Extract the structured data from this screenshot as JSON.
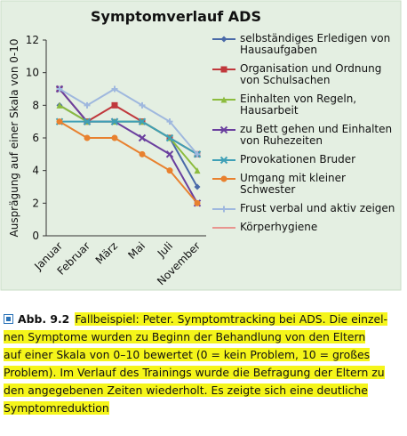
{
  "chart_data": {
    "type": "line",
    "title": "Symptomverlauf ADS",
    "y_label": "Ausprägung auf einer Skala von 0-10",
    "categories": [
      "Januar",
      "Februar",
      "März",
      "Mai",
      "Juli",
      "November"
    ],
    "ylim": [
      0,
      12
    ],
    "yticks": [
      0,
      2,
      4,
      6,
      8,
      10,
      12
    ],
    "series": [
      {
        "name": "selbständiges Erledigen von Hausaufgaben",
        "color": "#4a6aa8",
        "marker": "diamond",
        "values": [
          8,
          7,
          7,
          7,
          6,
          3
        ]
      },
      {
        "name": "Organisation und Ordnung von Schulsachen",
        "color": "#c0383c",
        "marker": "square",
        "values": [
          9,
          7,
          8,
          7,
          6,
          5
        ]
      },
      {
        "name": "Einhalten von Regeln, Hausarbeit",
        "color": "#8cbc3e",
        "marker": "triangle",
        "values": [
          8,
          7,
          7,
          7,
          6,
          4
        ]
      },
      {
        "name": "zu Bett gehen und Einhalten von Ruhezeiten",
        "color": "#6a3f9e",
        "marker": "cross",
        "values": [
          9,
          7,
          7,
          6,
          5,
          2
        ]
      },
      {
        "name": "Provokationen Bruder",
        "color": "#3fa0b6",
        "marker": "cross",
        "values": [
          7,
          7,
          7,
          7,
          6,
          5
        ]
      },
      {
        "name": "Umgang mit kleiner Schwester",
        "color": "#e8812f",
        "marker": "circle",
        "values": [
          7,
          6,
          6,
          5,
          4,
          2
        ]
      },
      {
        "name": "Frust verbal und aktiv zeigen",
        "color": "#9fb8de",
        "marker": "plus",
        "values": [
          9,
          8,
          9,
          8,
          7,
          5
        ]
      },
      {
        "name": "Körperhygiene",
        "color": "#e8958f",
        "marker": "none",
        "values": [
          null,
          null,
          null,
          null,
          null,
          null
        ]
      }
    ]
  },
  "caption": {
    "label": "Abb. 9.2",
    "lines": [
      "Fallbeispiel: Peter. Symptomtracking bei ADS. Die einzel-",
      "nen Symptome wurden zu Beginn der Behandlung von den Eltern",
      "auf einer Skala von 0–10 bewertet (0 = kein Problem, 10 = großes",
      "Problem). Im Verlauf des Trainings wurde die Befragung der Eltern zu",
      "den angegebenen Zeiten wiederholt. Es zeigte sich eine deutliche",
      "Symptomreduktion"
    ]
  }
}
